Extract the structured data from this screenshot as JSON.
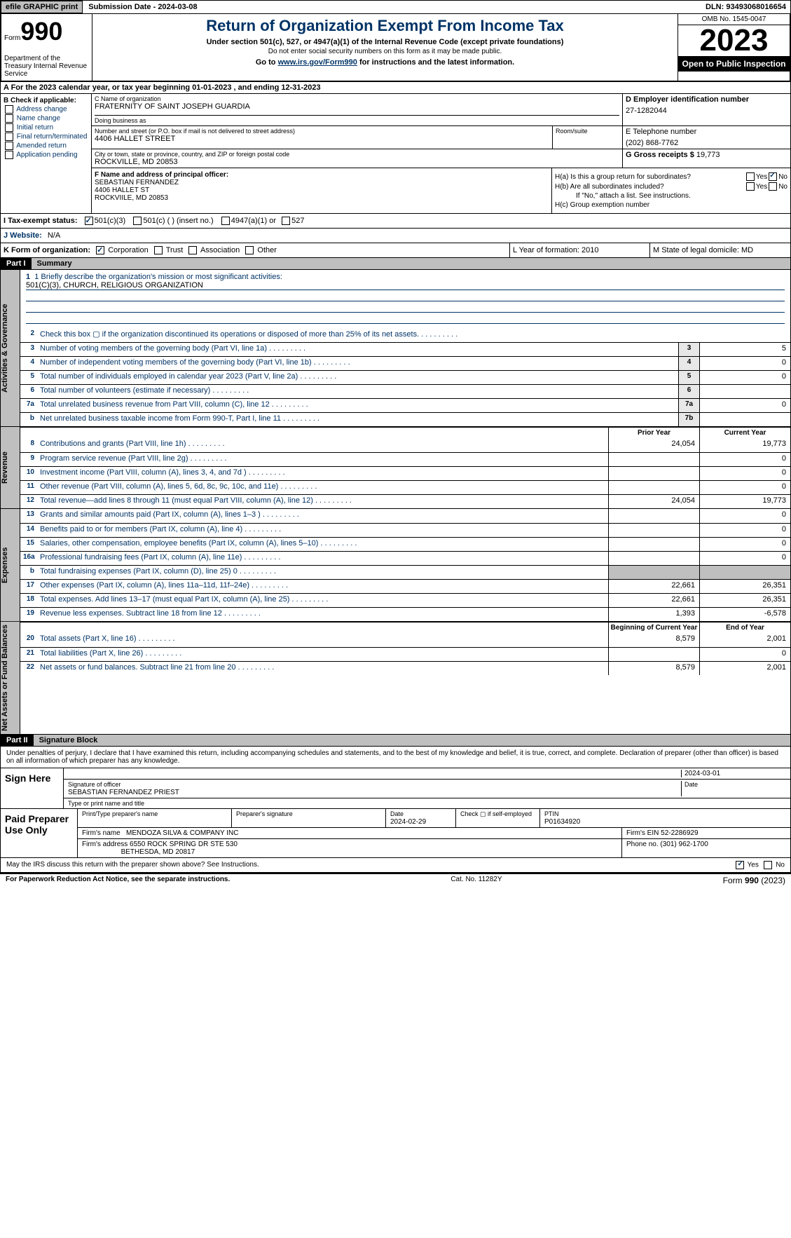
{
  "topbar": {
    "efile": "efile GRAPHIC print",
    "submission": "Submission Date - 2024-03-08",
    "dln": "DLN: 93493068016654"
  },
  "header": {
    "form_label": "Form",
    "form_num": "990",
    "dept": "Department of the Treasury Internal Revenue Service",
    "title": "Return of Organization Exempt From Income Tax",
    "sub1": "Under section 501(c), 527, or 4947(a)(1) of the Internal Revenue Code (except private foundations)",
    "sub2": "Do not enter social security numbers on this form as it may be made public.",
    "sub3_pre": "Go to ",
    "sub3_link": "www.irs.gov/Form990",
    "sub3_post": " for instructions and the latest information.",
    "omb": "OMB No. 1545-0047",
    "year": "2023",
    "open": "Open to Public Inspection"
  },
  "row_a": "A For the 2023 calendar year, or tax year beginning 01-01-2023   , and ending 12-31-2023",
  "col_b": {
    "hdr": "B Check if applicable:",
    "opts": [
      "Address change",
      "Name change",
      "Initial return",
      "Final return/terminated",
      "Amended return",
      "Application pending"
    ]
  },
  "org": {
    "name_lbl": "C Name of organization",
    "name": "FRATERNITY OF SAINT JOSEPH GUARDIA",
    "dba_lbl": "Doing business as",
    "dba": "",
    "addr_lbl": "Number and street (or P.O. box if mail is not delivered to street address)",
    "addr": "4406 HALLET STREET",
    "room_lbl": "Room/suite",
    "city_lbl": "City or town, state or province, country, and ZIP or foreign postal code",
    "city": "ROCKVILLE, MD  20853"
  },
  "d_e": {
    "ein_lbl": "D Employer identification number",
    "ein": "27-1282044",
    "tel_lbl": "E Telephone number",
    "tel": "(202) 868-7762",
    "gross_lbl": "G Gross receipts $",
    "gross": "19,773"
  },
  "f": {
    "lbl": "F  Name and address of principal officer:",
    "name": "SEBASTIAN FERNANDEZ",
    "addr1": "4406 HALLET ST",
    "addr2": "ROCKVIILE, MD  20853"
  },
  "h": {
    "a": "H(a)  Is this a group return for subordinates?",
    "b": "H(b)  Are all subordinates included?",
    "b_note": "If \"No,\" attach a list. See instructions.",
    "c": "H(c)  Group exemption number",
    "yes": "Yes",
    "no": "No"
  },
  "i": {
    "lbl": "I   Tax-exempt status:",
    "o1": "501(c)(3)",
    "o2": "501(c) (  ) (insert no.)",
    "o3": "4947(a)(1) or",
    "o4": "527"
  },
  "j": {
    "lbl": "J   Website:",
    "val": "N/A"
  },
  "k": {
    "lbl": "K Form of organization:",
    "o1": "Corporation",
    "o2": "Trust",
    "o3": "Association",
    "o4": "Other",
    "l": "L Year of formation: 2010",
    "m": "M State of legal domicile: MD"
  },
  "part1": {
    "hdr": "Part I",
    "title": "Summary"
  },
  "mission": {
    "lbl": "1   Briefly describe the organization's mission or most significant activities:",
    "val": "501(C)(3), CHURCH, RELIGIOUS ORGANIZATION"
  },
  "gov_lines": [
    {
      "n": "2",
      "d": "Check this box ▢ if the organization discontinued its operations or disposed of more than 25% of its net assets.",
      "box": "",
      "v": ""
    },
    {
      "n": "3",
      "d": "Number of voting members of the governing body (Part VI, line 1a)",
      "box": "3",
      "v": "5"
    },
    {
      "n": "4",
      "d": "Number of independent voting members of the governing body (Part VI, line 1b)",
      "box": "4",
      "v": "0"
    },
    {
      "n": "5",
      "d": "Total number of individuals employed in calendar year 2023 (Part V, line 2a)",
      "box": "5",
      "v": "0"
    },
    {
      "n": "6",
      "d": "Total number of volunteers (estimate if necessary)",
      "box": "6",
      "v": ""
    },
    {
      "n": "7a",
      "d": "Total unrelated business revenue from Part VIII, column (C), line 12",
      "box": "7a",
      "v": "0"
    },
    {
      "n": "b",
      "d": "Net unrelated business taxable income from Form 990-T, Part I, line 11",
      "box": "7b",
      "v": ""
    }
  ],
  "yr_hdr": {
    "prior": "Prior Year",
    "current": "Current Year",
    "beg": "Beginning of Current Year",
    "end": "End of Year"
  },
  "rev_lines": [
    {
      "n": "8",
      "d": "Contributions and grants (Part VIII, line 1h)",
      "p": "24,054",
      "c": "19,773"
    },
    {
      "n": "9",
      "d": "Program service revenue (Part VIII, line 2g)",
      "p": "",
      "c": "0"
    },
    {
      "n": "10",
      "d": "Investment income (Part VIII, column (A), lines 3, 4, and 7d )",
      "p": "",
      "c": "0"
    },
    {
      "n": "11",
      "d": "Other revenue (Part VIII, column (A), lines 5, 6d, 8c, 9c, 10c, and 11e)",
      "p": "",
      "c": "0"
    },
    {
      "n": "12",
      "d": "Total revenue—add lines 8 through 11 (must equal Part VIII, column (A), line 12)",
      "p": "24,054",
      "c": "19,773"
    }
  ],
  "exp_lines": [
    {
      "n": "13",
      "d": "Grants and similar amounts paid (Part IX, column (A), lines 1–3 )",
      "p": "",
      "c": "0"
    },
    {
      "n": "14",
      "d": "Benefits paid to or for members (Part IX, column (A), line 4)",
      "p": "",
      "c": "0"
    },
    {
      "n": "15",
      "d": "Salaries, other compensation, employee benefits (Part IX, column (A), lines 5–10)",
      "p": "",
      "c": "0"
    },
    {
      "n": "16a",
      "d": "Professional fundraising fees (Part IX, column (A), line 11e)",
      "p": "",
      "c": "0"
    },
    {
      "n": "b",
      "d": "Total fundraising expenses (Part IX, column (D), line 25) 0",
      "p": "shade",
      "c": "shade"
    },
    {
      "n": "17",
      "d": "Other expenses (Part IX, column (A), lines 11a–11d, 11f–24e)",
      "p": "22,661",
      "c": "26,351"
    },
    {
      "n": "18",
      "d": "Total expenses. Add lines 13–17 (must equal Part IX, column (A), line 25)",
      "p": "22,661",
      "c": "26,351"
    },
    {
      "n": "19",
      "d": "Revenue less expenses. Subtract line 18 from line 12",
      "p": "1,393",
      "c": "-6,578"
    }
  ],
  "net_lines": [
    {
      "n": "20",
      "d": "Total assets (Part X, line 16)",
      "p": "8,579",
      "c": "2,001"
    },
    {
      "n": "21",
      "d": "Total liabilities (Part X, line 26)",
      "p": "",
      "c": "0"
    },
    {
      "n": "22",
      "d": "Net assets or fund balances. Subtract line 21 from line 20",
      "p": "8,579",
      "c": "2,001"
    }
  ],
  "side_labels": {
    "gov": "Activities & Governance",
    "rev": "Revenue",
    "exp": "Expenses",
    "net": "Net Assets or Fund Balances"
  },
  "part2": {
    "hdr": "Part II",
    "title": "Signature Block"
  },
  "sig": {
    "decl": "Under penalties of perjury, I declare that I have examined this return, including accompanying schedules and statements, and to the best of my knowledge and belief, it is true, correct, and complete. Declaration of preparer (other than officer) is based on all information of which preparer has any knowledge.",
    "sign_here": "Sign Here",
    "sig_officer_lbl": "Signature of officer",
    "officer": "SEBASTIAN FERNANDEZ  PRIEST",
    "type_lbl": "Type or print name and title",
    "date_lbl": "Date",
    "date": "2024-03-01"
  },
  "prep": {
    "lbl": "Paid Preparer Use Only",
    "name_lbl": "Print/Type preparer's name",
    "sig_lbl": "Preparer's signature",
    "date_lbl": "Date",
    "date": "2024-02-29",
    "check_lbl": "Check ▢ if self-employed",
    "ptin_lbl": "PTIN",
    "ptin": "P01634920",
    "firm_lbl": "Firm's name",
    "firm": "MENDOZA SILVA & COMPANY INC",
    "ein_lbl": "Firm's EIN",
    "ein": "52-2286929",
    "addr_lbl": "Firm's address",
    "addr1": "6550 ROCK SPRING DR STE 530",
    "addr2": "BETHESDA, MD  20817",
    "phone_lbl": "Phone no.",
    "phone": "(301) 962-1700"
  },
  "discuss": {
    "q": "May the IRS discuss this return with the preparer shown above? See Instructions.",
    "yes": "Yes",
    "no": "No"
  },
  "footer": {
    "l": "For Paperwork Reduction Act Notice, see the separate instructions.",
    "m": "Cat. No. 11282Y",
    "r_pre": "Form ",
    "r_bold": "990",
    "r_post": " (2023)"
  }
}
